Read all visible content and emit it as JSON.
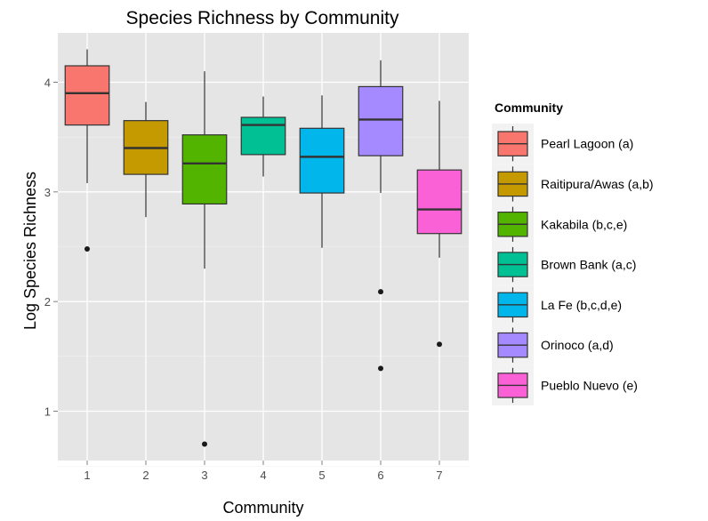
{
  "chart_data": {
    "type": "box",
    "title": "Species Richness by Community",
    "xlabel": "Community",
    "ylabel": "Log Species Richness",
    "categories": [
      "1",
      "2",
      "3",
      "4",
      "5",
      "6",
      "7"
    ],
    "yticks": [
      1,
      2,
      3,
      4
    ],
    "ylim": [
      0.55,
      4.45
    ],
    "grid": true,
    "legend": {
      "title": "Community",
      "position": "right",
      "entries": [
        "Pearl Lagoon (a)",
        "Raitipura/Awas (a,b)",
        "Kakabila (b,c,e)",
        "Brown Bank (a,c)",
        "La Fe (b,c,d,e)",
        "Orinoco (a,d)",
        "Pueblo Nuevo (e)"
      ]
    },
    "series": [
      {
        "category": "1",
        "whisker_low": 3.08,
        "q1": 3.61,
        "median": 3.9,
        "q3": 4.15,
        "whisker_high": 4.3,
        "outliers": [
          2.48
        ],
        "color": "#F8766D"
      },
      {
        "category": "2",
        "whisker_low": 2.77,
        "q1": 3.16,
        "median": 3.4,
        "q3": 3.65,
        "whisker_high": 3.82,
        "outliers": [],
        "color": "#C49A00"
      },
      {
        "category": "3",
        "whisker_low": 2.3,
        "q1": 2.89,
        "median": 3.26,
        "q3": 3.52,
        "whisker_high": 4.1,
        "outliers": [
          0.7
        ],
        "color": "#53B400"
      },
      {
        "category": "4",
        "whisker_low": 3.14,
        "q1": 3.34,
        "median": 3.61,
        "q3": 3.68,
        "whisker_high": 3.87,
        "outliers": [],
        "color": "#00C094"
      },
      {
        "category": "5",
        "whisker_low": 2.49,
        "q1": 2.99,
        "median": 3.32,
        "q3": 3.58,
        "whisker_high": 3.88,
        "outliers": [],
        "color": "#00B6EB"
      },
      {
        "category": "6",
        "whisker_low": 2.99,
        "q1": 3.33,
        "median": 3.66,
        "q3": 3.96,
        "whisker_high": 4.2,
        "outliers": [
          2.09,
          1.39
        ],
        "color": "#A58AFF"
      },
      {
        "category": "7",
        "whisker_low": 2.4,
        "q1": 2.62,
        "median": 2.84,
        "q3": 3.2,
        "whisker_high": 3.83,
        "outliers": [
          1.61
        ],
        "color": "#FB61D7"
      }
    ]
  }
}
